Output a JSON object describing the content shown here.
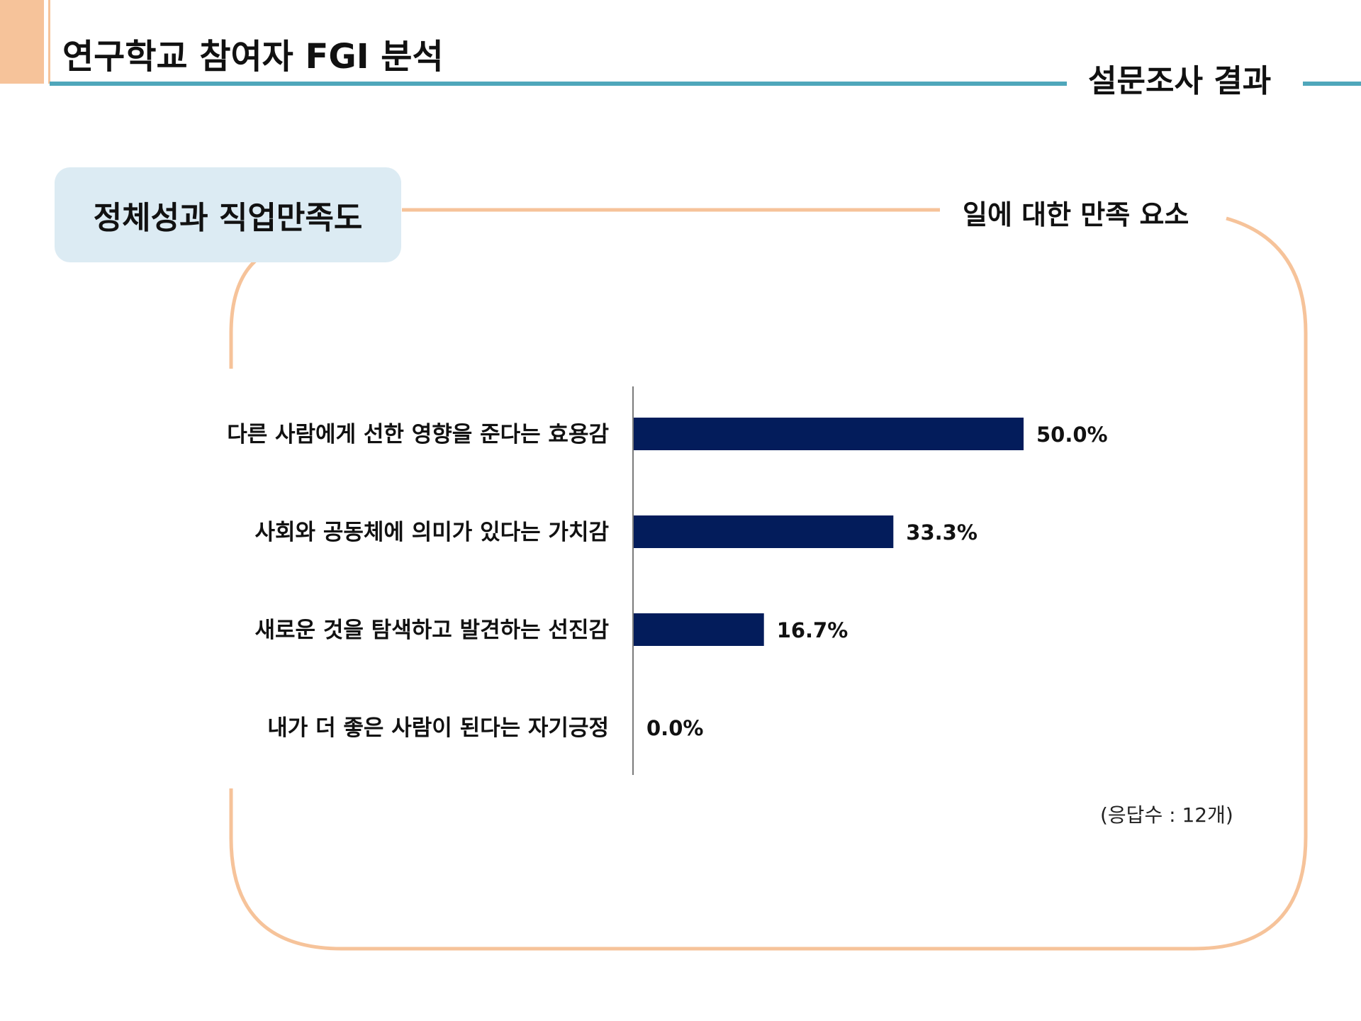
{
  "header": {
    "title": "연구학교 참여자 FGI 분석",
    "section": "설문조사 결과"
  },
  "topic": {
    "label": "정체성과 직업만족도"
  },
  "subheading": "일에 대한 만족 요소",
  "note": "(응답수 : 12개)",
  "colors": {
    "accent_orange": "#f6c39a",
    "rule_teal": "#4fa7bb",
    "bar_navy": "#031c5b",
    "topic_box": "#dcebf3"
  },
  "chart_data": {
    "type": "bar",
    "orientation": "horizontal",
    "title": "",
    "xlabel": "",
    "ylabel": "",
    "categories": [
      "다른 사람에게 선한 영향을 준다는 효용감",
      "사회와 공동체에 의미가 있다는 가치감",
      "새로운 것을 탐색하고 발견하는 선진감",
      "내가 더 좋은 사람이 된다는 자기긍정"
    ],
    "values": [
      50.0,
      33.3,
      16.7,
      0.0
    ],
    "value_labels": [
      "50.0%",
      "33.3%",
      "16.7%",
      "0.0%"
    ],
    "xlim": [
      0,
      100
    ],
    "grid": false,
    "legend": "none"
  }
}
